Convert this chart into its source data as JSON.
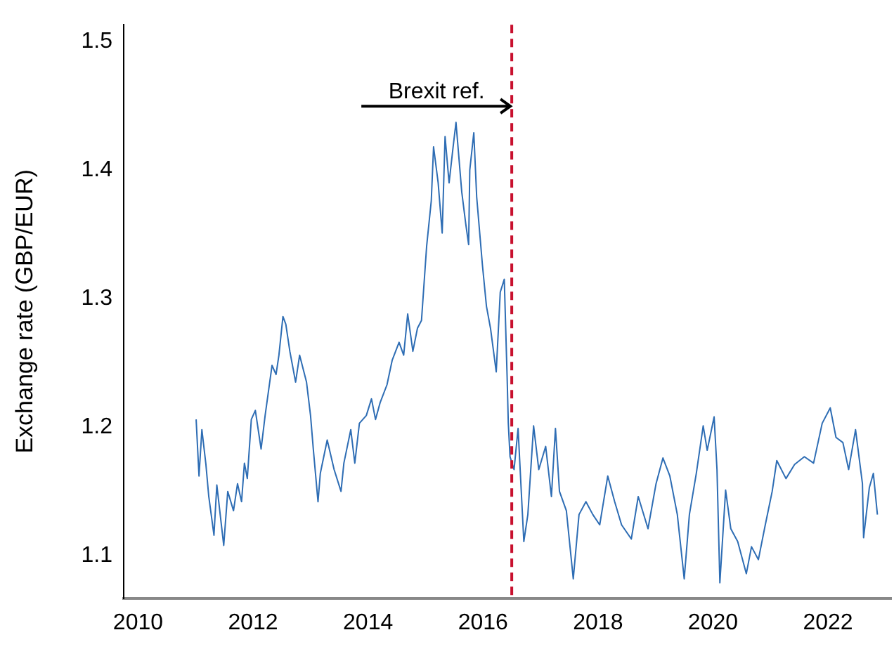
{
  "chart_data": {
    "type": "line",
    "ylabel": "Exchange rate (GBP/EUR)",
    "xlim": [
      2009.75,
      2023.1
    ],
    "xticks": [
      2010,
      2012,
      2014,
      2016,
      2018,
      2020,
      2022
    ],
    "ylim": [
      1.067,
      1.513
    ],
    "yticks": [
      1.1,
      1.2,
      1.3,
      1.4,
      1.5
    ],
    "grid": false,
    "legend": false,
    "marker": "none",
    "line_style": "solid",
    "ref_lines": [
      {
        "axis": "x",
        "value": 2016.5,
        "label": "Brexit ref.",
        "color": "#c8102e",
        "line_style": "dashed"
      }
    ],
    "series": [
      {
        "color": "#2e6db4",
        "x": [
          2011.01,
          2011.06,
          2011.11,
          2011.18,
          2011.23,
          2011.32,
          2011.37,
          2011.49,
          2011.56,
          2011.66,
          2011.73,
          2011.8,
          2011.85,
          2011.9,
          2011.97,
          2012.04,
          2012.14,
          2012.21,
          2012.33,
          2012.4,
          2012.45,
          2012.52,
          2012.57,
          2012.64,
          2012.74,
          2012.81,
          2012.93,
          2013.0,
          2013.05,
          2013.13,
          2013.17,
          2013.29,
          2013.41,
          2013.53,
          2013.58,
          2013.7,
          2013.77,
          2013.85,
          2013.97,
          2014.06,
          2014.13,
          2014.21,
          2014.33,
          2014.42,
          2014.54,
          2014.62,
          2014.69,
          2014.78,
          2014.86,
          2014.93,
          2015.02,
          2015.1,
          2015.14,
          2015.22,
          2015.29,
          2015.34,
          2015.41,
          2015.48,
          2015.53,
          2015.63,
          2015.7,
          2015.75,
          2015.77,
          2015.84,
          2015.89,
          2015.99,
          2016.06,
          2016.13,
          2016.23,
          2016.3,
          2016.37,
          2016.42,
          2016.44,
          2016.47,
          2016.54,
          2016.61,
          2016.71,
          2016.78,
          2016.88,
          2016.97,
          2017.09,
          2017.19,
          2017.26,
          2017.33,
          2017.45,
          2017.57,
          2017.67,
          2017.79,
          2017.91,
          2018.03,
          2018.17,
          2018.29,
          2018.41,
          2018.58,
          2018.7,
          2018.87,
          2019.01,
          2019.13,
          2019.25,
          2019.38,
          2019.5,
          2019.59,
          2019.71,
          2019.83,
          2019.9,
          2020.02,
          2020.07,
          2020.12,
          2020.22,
          2020.31,
          2020.43,
          2020.58,
          2020.67,
          2020.79,
          2020.91,
          2021.03,
          2021.11,
          2021.27,
          2021.42,
          2021.59,
          2021.75,
          2021.9,
          2022.04,
          2022.14,
          2022.26,
          2022.36,
          2022.48,
          2022.6,
          2022.62,
          2022.72,
          2022.79,
          2022.86
        ],
        "values": [
          1.206,
          1.162,
          1.198,
          1.171,
          1.146,
          1.116,
          1.155,
          1.108,
          1.15,
          1.135,
          1.156,
          1.142,
          1.172,
          1.16,
          1.206,
          1.213,
          1.183,
          1.209,
          1.248,
          1.241,
          1.256,
          1.286,
          1.28,
          1.259,
          1.235,
          1.256,
          1.235,
          1.209,
          1.182,
          1.142,
          1.164,
          1.19,
          1.167,
          1.15,
          1.172,
          1.198,
          1.172,
          1.203,
          1.209,
          1.222,
          1.206,
          1.219,
          1.233,
          1.252,
          1.266,
          1.256,
          1.288,
          1.259,
          1.277,
          1.283,
          1.341,
          1.376,
          1.418,
          1.39,
          1.351,
          1.426,
          1.39,
          1.418,
          1.437,
          1.383,
          1.358,
          1.342,
          1.4,
          1.429,
          1.379,
          1.326,
          1.294,
          1.277,
          1.243,
          1.305,
          1.315,
          1.238,
          1.203,
          1.177,
          1.167,
          1.199,
          1.111,
          1.132,
          1.201,
          1.167,
          1.185,
          1.146,
          1.199,
          1.15,
          1.135,
          1.082,
          1.132,
          1.142,
          1.132,
          1.124,
          1.162,
          1.142,
          1.124,
          1.113,
          1.146,
          1.121,
          1.156,
          1.176,
          1.162,
          1.132,
          1.082,
          1.132,
          1.164,
          1.201,
          1.182,
          1.208,
          1.167,
          1.079,
          1.151,
          1.121,
          1.111,
          1.086,
          1.107,
          1.097,
          1.124,
          1.15,
          1.174,
          1.16,
          1.171,
          1.177,
          1.172,
          1.203,
          1.215,
          1.192,
          1.188,
          1.167,
          1.198,
          1.156,
          1.114,
          1.153,
          1.164,
          1.132
        ]
      }
    ]
  }
}
